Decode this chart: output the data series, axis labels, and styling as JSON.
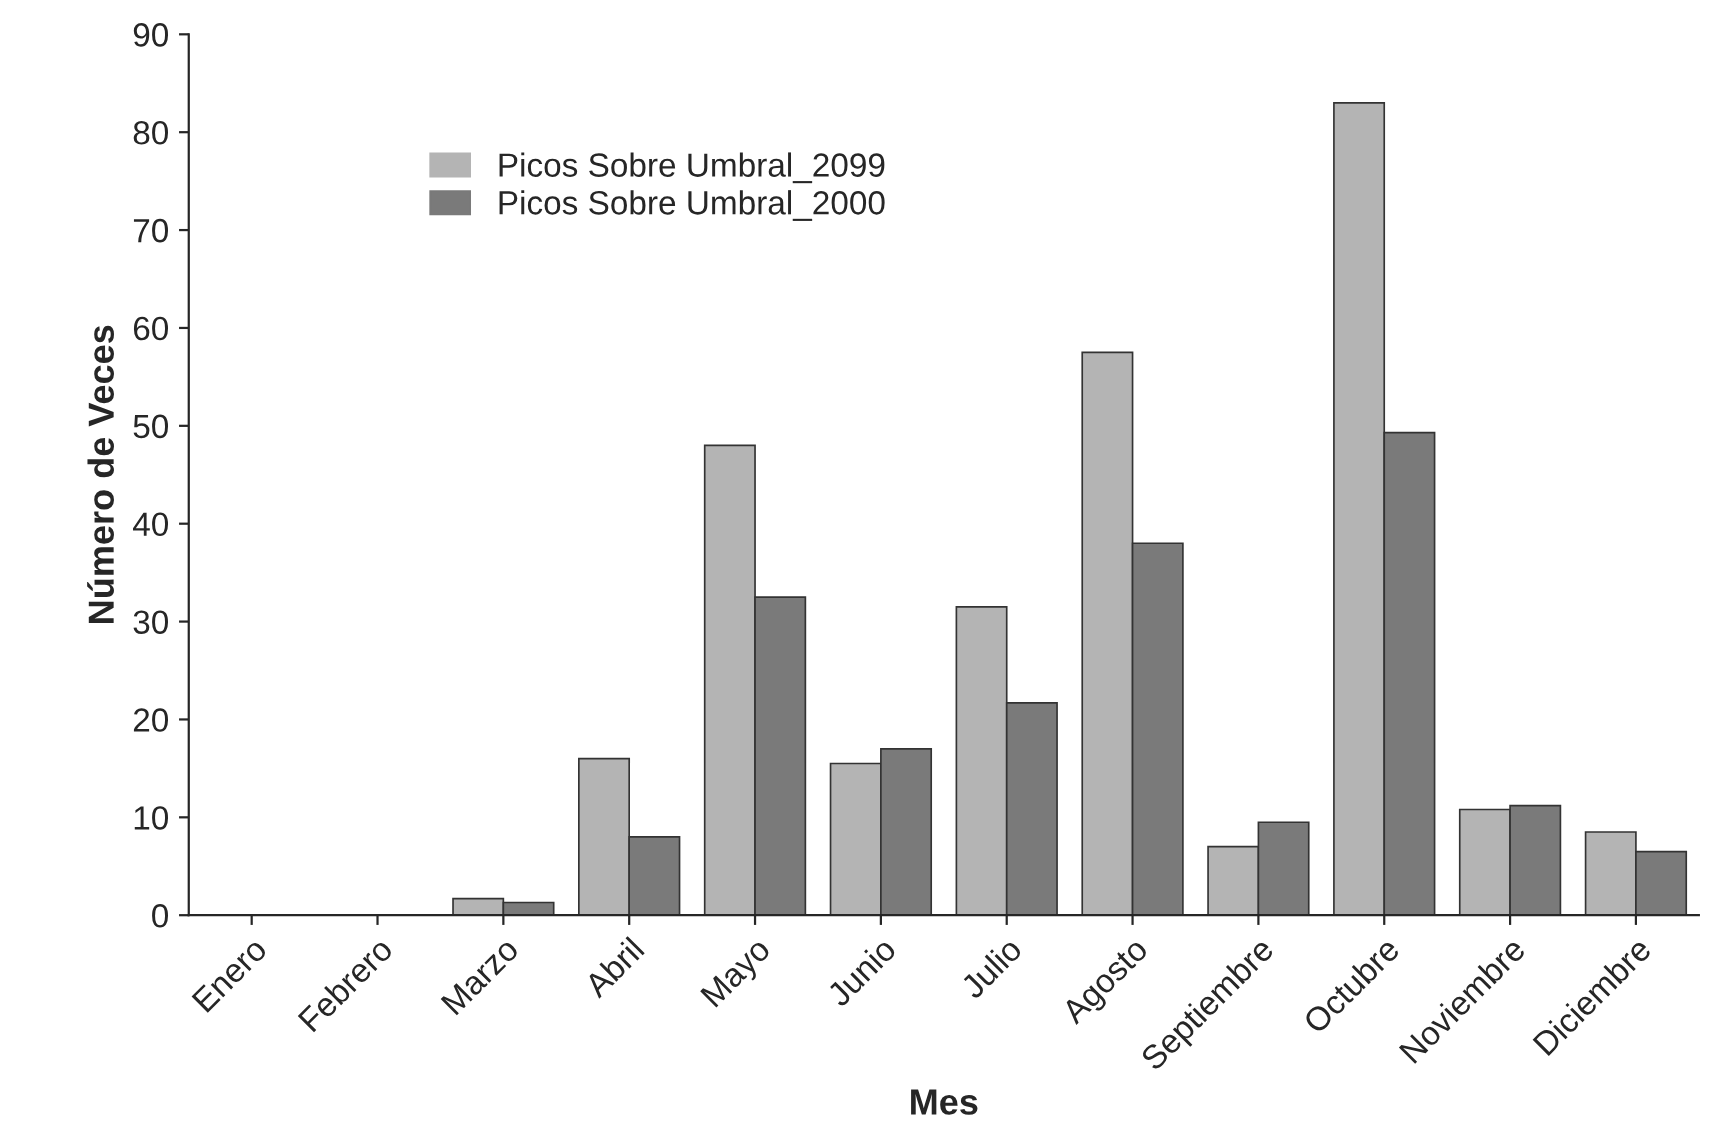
{
  "chart_data": {
    "type": "bar",
    "xlabel": "Mes",
    "ylabel": "Número de Veces",
    "categories": [
      "Enero",
      "Febrero",
      "Marzo",
      "Abril",
      "Mayo",
      "Junio",
      "Julio",
      "Agosto",
      "Septiembre",
      "Octubre",
      "Noviembre",
      "Diciembre"
    ],
    "series": [
      {
        "name": "Picos Sobre Umbral_2099",
        "color": "#b4b4b4",
        "values": [
          0,
          0,
          1.7,
          16,
          48,
          15.5,
          31.5,
          57.5,
          7,
          83,
          10.8,
          8.5
        ]
      },
      {
        "name": "Picos Sobre Umbral_2000",
        "color": "#7a7a7a",
        "values": [
          0,
          0,
          1.3,
          8,
          32.5,
          17,
          21.7,
          38,
          9.5,
          49.3,
          11.2,
          6.5
        ]
      }
    ],
    "ylim": [
      0,
      90
    ],
    "yticks": [
      0,
      10,
      20,
      30,
      40,
      50,
      60,
      70,
      80,
      90
    ],
    "grid": false,
    "legend": "top left"
  }
}
